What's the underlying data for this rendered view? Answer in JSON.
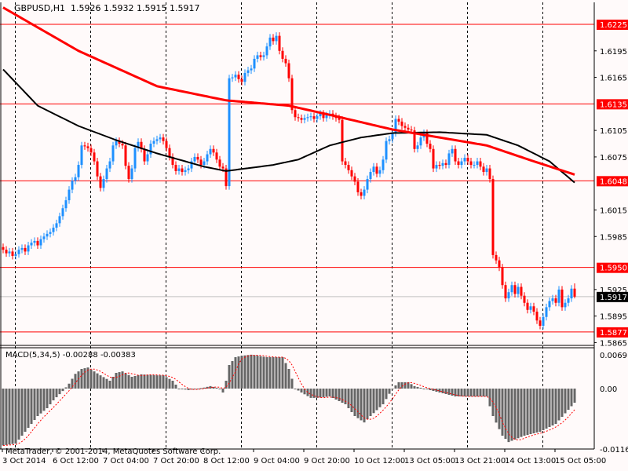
{
  "header": {
    "symbol": "GBPUSD,H1",
    "open": "1.5926",
    "high": "1.5932",
    "low": "1.5915",
    "close": "1.5917"
  },
  "colors": {
    "background": "#fffafa",
    "bull": "#1e90ff",
    "bear": "#ff0000",
    "level": "#ff0000",
    "ma_slow": "#ff0000",
    "ma_fast": "#000000",
    "bid_line": "#c0c0c0",
    "histogram": "#666666",
    "signal": "#ff0000"
  },
  "price_axis": {
    "ticks": [
      "1.6195",
      "1.6165",
      "1.6105",
      "1.6075",
      "1.6015",
      "1.5985",
      "1.5925",
      "1.5895",
      "1.5865"
    ]
  },
  "levels": [
    "1.6225",
    "1.6135",
    "1.6048",
    "1.5950",
    "1.5877"
  ],
  "bid": "1.5917",
  "time_axis": [
    {
      "bar": 0,
      "label": "3 Oct 2014"
    },
    {
      "bar": 16,
      "label": "6 Oct 12:00"
    },
    {
      "bar": 32,
      "label": "7 Oct 04:00"
    },
    {
      "bar": 48,
      "label": "7 Oct 20:00"
    },
    {
      "bar": 64,
      "label": "8 Oct 12:00"
    },
    {
      "bar": 80,
      "label": "9 Oct 04:00"
    },
    {
      "bar": 96,
      "label": "9 Oct 20:00"
    },
    {
      "bar": 112,
      "label": "10 Oct 12:00"
    },
    {
      "bar": 128,
      "label": "13 Oct 05:00"
    },
    {
      "bar": 144,
      "label": "13 Oct 21:00"
    },
    {
      "bar": 160,
      "label": "14 Oct 13:00"
    },
    {
      "bar": 176,
      "label": "15 Oct 05:00"
    }
  ],
  "closes": [
    1.597,
    1.5966,
    1.5968,
    1.5963,
    1.5965,
    1.597,
    1.5972,
    1.5968,
    1.5975,
    1.5978,
    1.598,
    1.5975,
    1.5982,
    1.5985,
    1.5988,
    1.599,
    1.5995,
    1.6,
    1.6008,
    1.6017,
    1.6026,
    1.6038,
    1.6048,
    1.6052,
    1.6066,
    1.6088,
    1.6087,
    1.6085,
    1.608,
    1.607,
    1.6053,
    1.604,
    1.605,
    1.6062,
    1.607,
    1.6088,
    1.6093,
    1.609,
    1.6088,
    1.6065,
    1.605,
    1.6062,
    1.6085,
    1.6092,
    1.6084,
    1.607,
    1.6078,
    1.609,
    1.6093,
    1.6095,
    1.6097,
    1.6093,
    1.6085,
    1.6075,
    1.6066,
    1.6059,
    1.6062,
    1.6058,
    1.606,
    1.6062,
    1.607,
    1.6075,
    1.6072,
    1.6066,
    1.607,
    1.6078,
    1.6084,
    1.608,
    1.6072,
    1.6064,
    1.6062,
    1.6042,
    1.6164,
    1.6165,
    1.6168,
    1.6163,
    1.616,
    1.617,
    1.6173,
    1.6175,
    1.6186,
    1.619,
    1.6188,
    1.619,
    1.62,
    1.621,
    1.6206,
    1.6212,
    1.6195,
    1.6186,
    1.6181,
    1.6164,
    1.6128,
    1.612,
    1.6119,
    1.6117,
    1.6119,
    1.612,
    1.6121,
    1.6118,
    1.6121,
    1.6124,
    1.6119,
    1.6122,
    1.6124,
    1.6121,
    1.6119,
    1.6117,
    1.607,
    1.6066,
    1.606,
    1.6053,
    1.6047,
    1.6035,
    1.6031,
    1.6038,
    1.605,
    1.6058,
    1.6064,
    1.6056,
    1.606,
    1.6072,
    1.6093,
    1.6095,
    1.6102,
    1.6118,
    1.6115,
    1.611,
    1.6108,
    1.6106,
    1.6105,
    1.6084,
    1.6088,
    1.6097,
    1.6102,
    1.609,
    1.6084,
    1.6062,
    1.6066,
    1.6065,
    1.6068,
    1.6066,
    1.6079,
    1.6084,
    1.607,
    1.6066,
    1.607,
    1.6074,
    1.607,
    1.6066,
    1.6066,
    1.607,
    1.6064,
    1.6058,
    1.6062,
    1.605,
    1.5964,
    1.5958,
    1.595,
    1.593,
    1.5915,
    1.5922,
    1.593,
    1.592,
    1.5928,
    1.5918,
    1.591,
    1.5902,
    1.5906,
    1.59,
    1.589,
    1.5884,
    1.5894,
    1.5905,
    1.5912,
    1.5915,
    1.591,
    1.5925,
    1.5905,
    1.591,
    1.5915,
    1.5926,
    1.5917
  ],
  "ma_slow": [
    [
      0,
      1.6244
    ],
    [
      24,
      1.6195
    ],
    [
      49,
      1.6155
    ],
    [
      71,
      1.6139
    ],
    [
      91,
      1.6133
    ],
    [
      106,
      1.6121
    ],
    [
      124,
      1.6106
    ],
    [
      139,
      1.6097
    ],
    [
      154,
      1.6088
    ],
    [
      169,
      1.607
    ],
    [
      182,
      1.6055
    ]
  ],
  "ma_fast": [
    [
      0,
      1.6174
    ],
    [
      11,
      1.6133
    ],
    [
      24,
      1.611
    ],
    [
      36,
      1.6094
    ],
    [
      49,
      1.6079
    ],
    [
      64,
      1.6064
    ],
    [
      71,
      1.6059
    ],
    [
      86,
      1.6066
    ],
    [
      94,
      1.6072
    ],
    [
      104,
      1.6088
    ],
    [
      114,
      1.6097
    ],
    [
      124,
      1.6102
    ],
    [
      139,
      1.6103
    ],
    [
      154,
      1.61
    ],
    [
      164,
      1.6088
    ],
    [
      174,
      1.607
    ],
    [
      182,
      1.6046
    ]
  ],
  "macd": {
    "title": "MACD(5,34,5)",
    "main_value": "-0.00288",
    "signal_value": "-0.00383",
    "axis": [
      "0.0069",
      "0.00",
      "-0.01163"
    ],
    "histogram_keypoints": [
      [
        0,
        -0.0116
      ],
      [
        4,
        -0.0112
      ],
      [
        7,
        -0.0088
      ],
      [
        9,
        -0.0072
      ],
      [
        11,
        -0.0056
      ],
      [
        14,
        -0.004
      ],
      [
        16,
        -0.0024
      ],
      [
        19,
        -0.0005
      ],
      [
        21,
        0.001
      ],
      [
        23,
        0.003
      ],
      [
        25,
        0.004
      ],
      [
        27,
        0.0043
      ],
      [
        31,
        0.0027
      ],
      [
        34,
        0.0016
      ],
      [
        36,
        0.0032
      ],
      [
        38,
        0.0035
      ],
      [
        41,
        0.0024
      ],
      [
        44,
        0.0029
      ],
      [
        49,
        0.0027
      ],
      [
        51,
        0.0027
      ],
      [
        54,
        0.0016
      ],
      [
        56,
        0.0
      ],
      [
        59,
        -0.0003
      ],
      [
        64,
        0.0002
      ],
      [
        66,
        0.0005
      ],
      [
        69,
        0.0
      ],
      [
        70,
        -0.0008
      ],
      [
        71,
        0.0016
      ],
      [
        72,
        0.0048
      ],
      [
        74,
        0.0064
      ],
      [
        76,
        0.0067
      ],
      [
        79,
        0.0069
      ],
      [
        84,
        0.0064
      ],
      [
        89,
        0.0064
      ],
      [
        91,
        0.004
      ],
      [
        93,
        0.0
      ],
      [
        95,
        -0.0008
      ],
      [
        98,
        -0.0019
      ],
      [
        100,
        -0.0019
      ],
      [
        104,
        -0.0016
      ],
      [
        109,
        -0.0032
      ],
      [
        112,
        -0.0056
      ],
      [
        115,
        -0.0069
      ],
      [
        117,
        -0.0056
      ],
      [
        121,
        -0.0032
      ],
      [
        124,
        0.0
      ],
      [
        126,
        0.0013
      ],
      [
        129,
        0.0013
      ],
      [
        131,
        0.0005
      ],
      [
        134,
        0.0
      ],
      [
        139,
        -0.0008
      ],
      [
        144,
        -0.0016
      ],
      [
        149,
        -0.0016
      ],
      [
        154,
        -0.0016
      ],
      [
        156,
        -0.0056
      ],
      [
        159,
        -0.0096
      ],
      [
        161,
        -0.0109
      ],
      [
        166,
        -0.0096
      ],
      [
        171,
        -0.0088
      ],
      [
        176,
        -0.0072
      ],
      [
        182,
        -0.00288
      ]
    ]
  },
  "copyright": "MetaTrader, © 2001-2014, MetaQuotes Software Corp."
}
